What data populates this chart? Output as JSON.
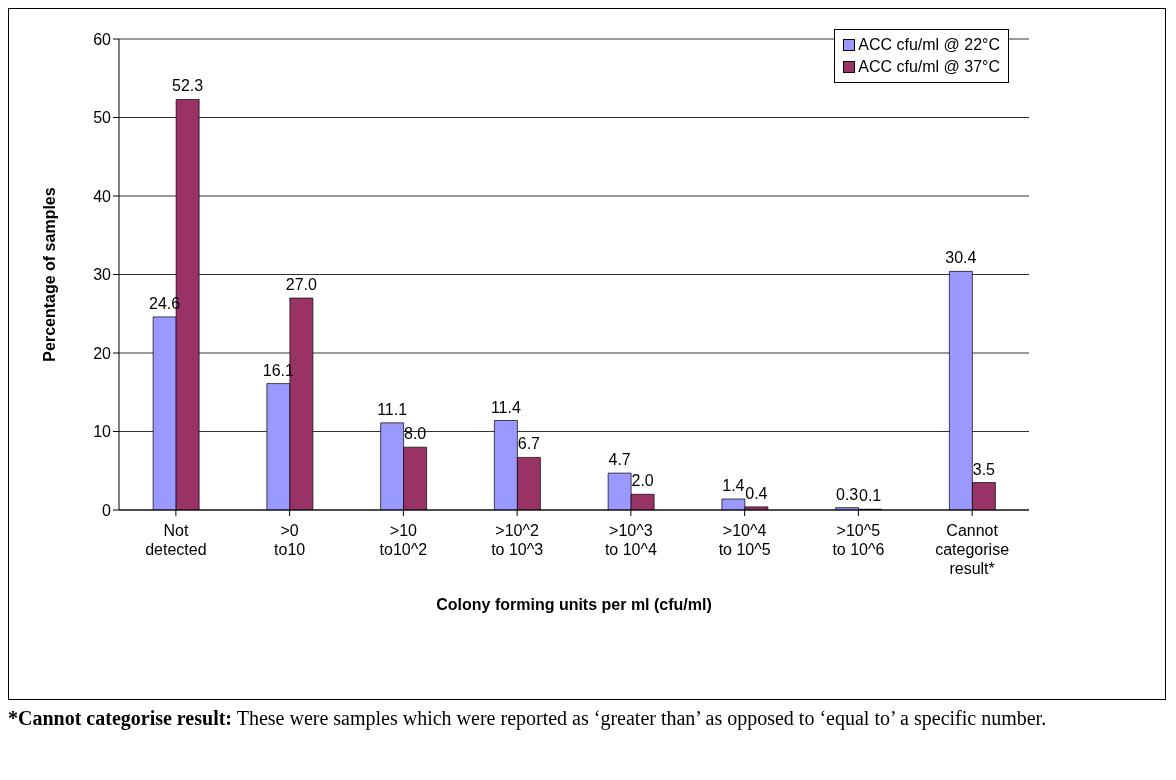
{
  "chart_data": {
    "type": "bar",
    "xlabel": "Colony forming units per ml (cfu/ml)",
    "ylabel": "Percentage of samples",
    "categories": [
      "Not\ndetected",
      ">0\nto10",
      ">10\nto10^2",
      ">10^2\nto 10^3",
      ">10^3\nto 10^4",
      ">10^4\nto 10^5",
      ">10^5\nto 10^6",
      "Cannot\ncategorise\nresult*"
    ],
    "series": [
      {
        "name": "ACC cfu/ml @ 22°C",
        "color": "#9999ff",
        "values": [
          24.6,
          16.1,
          11.1,
          11.4,
          4.7,
          1.4,
          0.3,
          30.4
        ],
        "value_labels": [
          "24.6",
          "16.1",
          "11.1",
          "11.4",
          "4.7",
          "1.4",
          "0.3",
          "30.4"
        ]
      },
      {
        "name": "ACC cfu/ml @ 37°C",
        "color": "#993366",
        "values": [
          52.3,
          27.0,
          8.0,
          6.7,
          2.0,
          0.4,
          0.1,
          3.5
        ],
        "value_labels": [
          "52.3",
          "27.0",
          "8.0",
          "6.7",
          "2.0",
          "0.4",
          "0.1",
          "3.5"
        ]
      }
    ],
    "ylim": [
      0,
      60
    ],
    "yticks": [
      0,
      10,
      20,
      30,
      40,
      50,
      60
    ],
    "grid": "y",
    "legend": "top right",
    "annotations": [
      "*Cannot categorise result: These were samples which were reported as ‘greater than’ as opposed to ‘equal to’ a specific number."
    ]
  }
}
